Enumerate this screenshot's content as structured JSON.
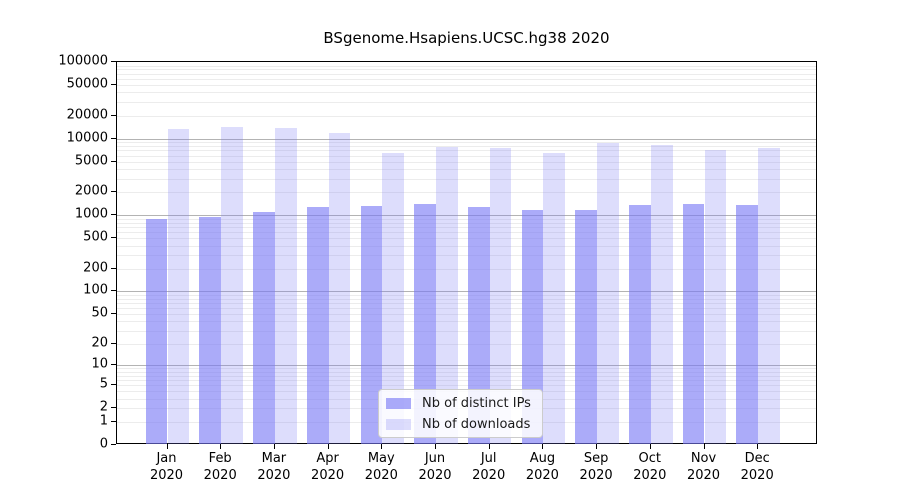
{
  "chart_data": {
    "type": "bar",
    "title": "BSgenome.Hsapiens.UCSC.hg38 2020",
    "scale": "log1p",
    "grid": "on",
    "legend_position": "bottom-center",
    "categories": [
      "Jan",
      "Feb",
      "Mar",
      "Apr",
      "May",
      "Jun",
      "Jul",
      "Aug",
      "Sep",
      "Oct",
      "Nov",
      "Dec"
    ],
    "year_label": "2020",
    "series": [
      {
        "name": "Nb of distinct IPs",
        "color": "#7878f5",
        "alpha": 0.62,
        "values": [
          895,
          950,
          1095,
          1275,
          1315,
          1380,
          1265,
          1165,
          1175,
          1340,
          1380,
          1340
        ]
      },
      {
        "name": "Nb of downloads",
        "color": "#7878f5",
        "alpha": 0.25,
        "values": [
          13300,
          14200,
          13700,
          11800,
          6500,
          7800,
          7450,
          6500,
          8650,
          8200,
          7050,
          7450
        ]
      }
    ],
    "y_ticks": [
      100000,
      50000,
      20000,
      10000,
      5000,
      2000,
      1000,
      500,
      200,
      100,
      50,
      20,
      10,
      5,
      2,
      1,
      0
    ],
    "ylim": [
      0,
      100000
    ],
    "major_gridline_values": [
      10,
      100,
      1000,
      10000
    ],
    "axis_color": "#000000",
    "minor_grid_color": "#ececec",
    "major_grid_color": "#b3b3b3"
  }
}
